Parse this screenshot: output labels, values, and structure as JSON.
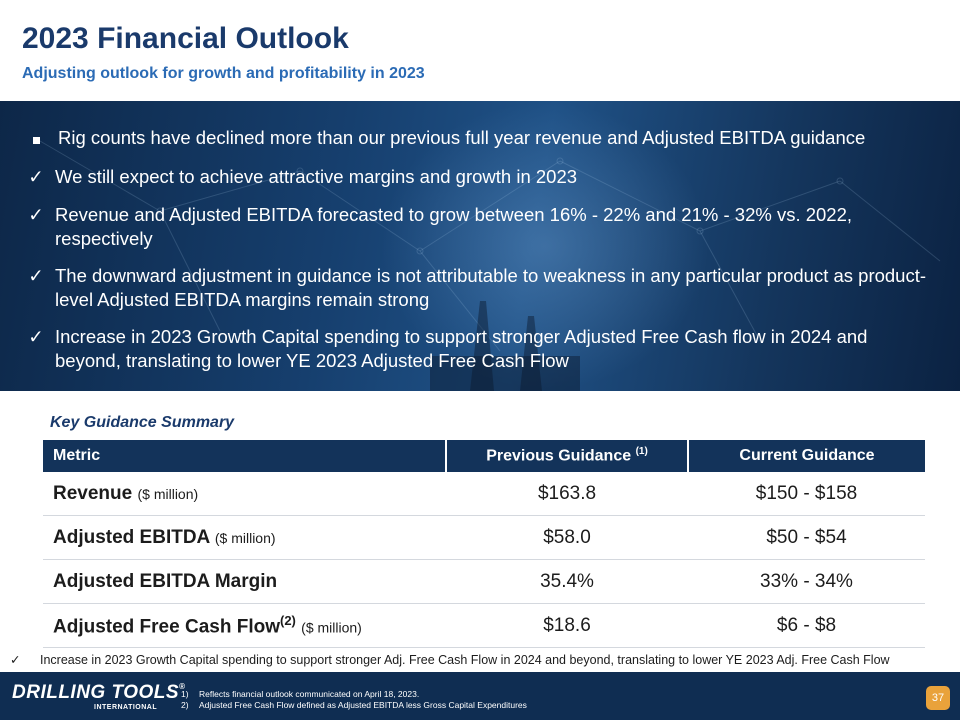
{
  "header": {
    "title": "2023 Financial Outlook",
    "subtitle": "Adjusting outlook for growth and profitability in 2023"
  },
  "bullets": [
    {
      "marker": "square",
      "text": "Rig counts have declined more than our previous full year revenue and Adjusted EBITDA guidance"
    },
    {
      "marker": "check",
      "text": "We still expect to achieve attractive margins and growth in 2023"
    },
    {
      "marker": "check",
      "text": "Revenue and Adjusted EBITDA forecasted to grow between 16% - 22% and 21% - 32% vs. 2022, respectively"
    },
    {
      "marker": "check",
      "text": "The downward adjustment in guidance is not attributable to weakness in any particular product as product-level Adjusted EBITDA margins remain strong"
    },
    {
      "marker": "check",
      "text": "Increase in 2023 Growth Capital spending to support stronger Adjusted Free Cash flow in 2024 and beyond, translating to lower YE 2023 Adjusted Free Cash Flow"
    }
  ],
  "guidance": {
    "heading": "Key Guidance Summary",
    "columns": {
      "metric": "Metric",
      "previous": "Previous Guidance",
      "previous_note": "(1)",
      "current": "Current Guidance"
    },
    "rows": [
      {
        "metric": "Revenue",
        "note": "",
        "unit": "($ million)",
        "previous": "$163.8",
        "current": "$150 - $158"
      },
      {
        "metric": "Adjusted EBITDA",
        "note": "",
        "unit": "($ million)",
        "previous": "$58.0",
        "current": "$50 - $54"
      },
      {
        "metric": "Adjusted EBITDA Margin",
        "note": "",
        "unit": "",
        "previous": "35.4%",
        "current": "33% - 34%"
      },
      {
        "metric": "Adjusted Free Cash Flow",
        "note": "(2)",
        "unit": "($ million)",
        "previous": "$18.6",
        "current": "$6 - $8"
      }
    ]
  },
  "footnote_check": "Increase in 2023 Growth Capital spending to support stronger Adj. Free Cash Flow in 2024 and beyond, translating to lower YE 2023 Adj. Free Cash Flow",
  "footer": {
    "logo_text": "DRILLING TOOLS",
    "logo_reg": "®",
    "logo_sub": "INTERNATIONAL",
    "notes": [
      {
        "key": "1)",
        "text": "Reflects financial outlook communicated on April 18, 2023."
      },
      {
        "key": "2)",
        "text": "Adjusted Free Cash Flow defined as Adjusted EBITDA less Gross Capital Expenditures"
      }
    ],
    "page_number": "37"
  },
  "colors": {
    "navy": "#13335a",
    "accent_blue": "#2b6bb5",
    "page_badge": "#e9a23b"
  }
}
